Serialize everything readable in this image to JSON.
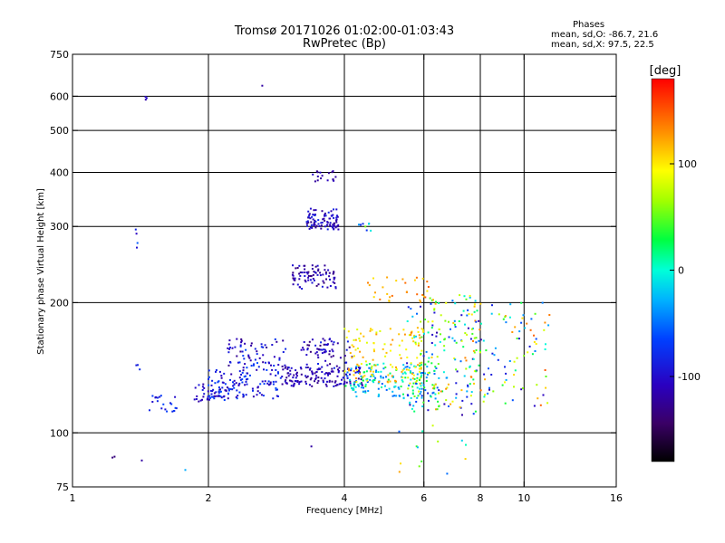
{
  "title": "Tromsø 20171026 01:02:00-01:03:43",
  "subtitle": "RwPretec (Bp)",
  "phases": {
    "heading": "Phases",
    "line_o": "mean, sd,O: -86.7, 21.6",
    "line_x": "mean, sd,X:  97.5, 22.5"
  },
  "colorbar": {
    "unit": "[deg]",
    "min": -180,
    "max": 180,
    "ticks": [
      {
        "value": 100,
        "label": "100"
      },
      {
        "value": 0,
        "label": "0"
      },
      {
        "value": -100,
        "label": "-100"
      }
    ]
  },
  "chart_data": {
    "type": "scatter",
    "xlabel": "Frequency [MHz]",
    "ylabel": "Stationary phase Virtual Height [km]",
    "x_scale": "log",
    "y_scale": "log",
    "xlim": [
      1,
      16
    ],
    "ylim": [
      75,
      750
    ],
    "x_ticks": [
      {
        "value": 1,
        "label": "1"
      },
      {
        "value": 2,
        "label": "2"
      },
      {
        "value": 4,
        "label": "4"
      },
      {
        "value": 6,
        "label": "6"
      },
      {
        "value": 8,
        "label": "8"
      },
      {
        "value": 10,
        "label": "10"
      },
      {
        "value": 16,
        "label": "16"
      }
    ],
    "x_grid": [
      2,
      4,
      6,
      8,
      10
    ],
    "y_ticks": [
      {
        "value": 75,
        "label": "75"
      },
      {
        "value": 100,
        "label": "100"
      },
      {
        "value": 200,
        "label": "200"
      },
      {
        "value": 300,
        "label": "300"
      },
      {
        "value": 400,
        "label": "400"
      },
      {
        "value": 500,
        "label": "500"
      },
      {
        "value": 600,
        "label": "600"
      },
      {
        "value": 750,
        "label": "750"
      }
    ],
    "y_grid": [
      100,
      200,
      300,
      400,
      500,
      600
    ],
    "clusters": [
      {
        "f": [
          1.43,
          1.47
        ],
        "h": [
          585,
          600
        ],
        "phase": [
          -120,
          -100
        ],
        "n": 3
      },
      {
        "f": [
          2.6,
          2.65
        ],
        "h": [
          625,
          640
        ],
        "phase": [
          -120,
          -120
        ],
        "n": 1
      },
      {
        "f": [
          1.38,
          1.4
        ],
        "h": [
          255,
          300
        ],
        "phase": [
          -110,
          -40
        ],
        "n": 4
      },
      {
        "f": [
          1.38,
          1.41
        ],
        "h": [
          140,
          160
        ],
        "phase": [
          -100,
          -60
        ],
        "n": 3
      },
      {
        "f": [
          1.48,
          1.7
        ],
        "h": [
          112,
          122
        ],
        "phase": [
          -110,
          -60
        ],
        "n": 22
      },
      {
        "f": [
          1.85,
          2.25
        ],
        "h": [
          118,
          130
        ],
        "phase": [
          -120,
          -60
        ],
        "n": 45
      },
      {
        "f": [
          2.0,
          2.9
        ],
        "h": [
          120,
          140
        ],
        "phase": [
          -120,
          -60
        ],
        "n": 110
      },
      {
        "f": [
          2.2,
          3.0
        ],
        "h": [
          140,
          165
        ],
        "phase": [
          -130,
          -60
        ],
        "n": 70
      },
      {
        "f": [
          2.9,
          4.4
        ],
        "h": [
          128,
          142
        ],
        "phase": [
          -130,
          -90
        ],
        "n": 140
      },
      {
        "f": [
          3.2,
          4.2
        ],
        "h": [
          140,
          165
        ],
        "phase": [
          -140,
          -80
        ],
        "n": 70
      },
      {
        "f": [
          4.0,
          6.5
        ],
        "h": [
          120,
          145
        ],
        "phase": [
          -60,
          40
        ],
        "n": 160
      },
      {
        "f": [
          4.0,
          6.0
        ],
        "h": [
          130,
          175
        ],
        "phase": [
          80,
          130
        ],
        "n": 120
      },
      {
        "f": [
          5.5,
          8.0
        ],
        "h": [
          110,
          210
        ],
        "phase": [
          -120,
          140
        ],
        "n": 200
      },
      {
        "f": [
          7.5,
          11.5
        ],
        "h": [
          115,
          200
        ],
        "phase": [
          -120,
          150
        ],
        "n": 100
      },
      {
        "f": [
          3.05,
          3.85
        ],
        "h": [
          215,
          245
        ],
        "phase": [
          -140,
          -90
        ],
        "n": 80
      },
      {
        "f": [
          4.5,
          6.3
        ],
        "h": [
          200,
          230
        ],
        "phase": [
          100,
          150
        ],
        "n": 30
      },
      {
        "f": [
          3.3,
          3.9
        ],
        "h": [
          295,
          330
        ],
        "phase": [
          -130,
          -80
        ],
        "n": 90
      },
      {
        "f": [
          3.4,
          3.85
        ],
        "h": [
          380,
          405
        ],
        "phase": [
          -130,
          -100
        ],
        "n": 18
      },
      {
        "f": [
          4.3,
          4.75
        ],
        "h": [
          290,
          305
        ],
        "phase": [
          -110,
          120
        ],
        "n": 8
      },
      {
        "f": [
          1.05,
          1.45
        ],
        "h": [
          85,
          90
        ],
        "phase": [
          -140,
          -100
        ],
        "n": 3
      },
      {
        "f": [
          1.75,
          1.78
        ],
        "h": [
          82,
          83
        ],
        "phase": [
          -30,
          -30
        ],
        "n": 1
      },
      {
        "f": [
          4.8,
          7.5
        ],
        "h": [
          80,
          105
        ],
        "phase": [
          -60,
          130
        ],
        "n": 14
      },
      {
        "f": [
          3.35,
          3.4
        ],
        "h": [
          93,
          95
        ],
        "phase": [
          -120,
          -120
        ],
        "n": 1
      }
    ]
  }
}
